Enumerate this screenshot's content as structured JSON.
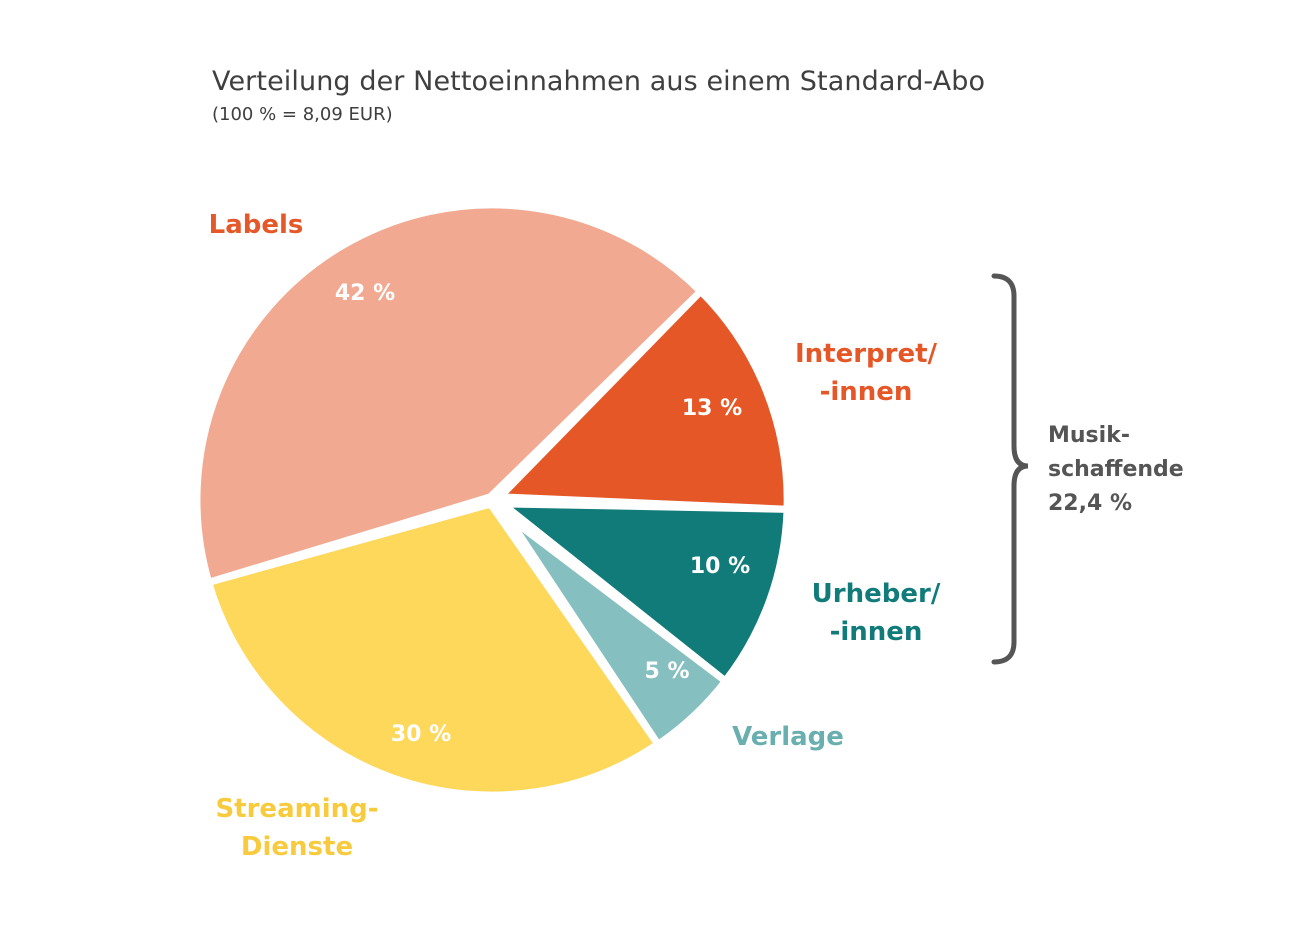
{
  "chart_data": {
    "type": "pie",
    "title": "Verteilung der Nettoeinnahmen aus einem Standard-Abo",
    "subtitle": "(100 % = 8,09 EUR)",
    "slices": [
      {
        "name": "labels",
        "category": [
          "Labels"
        ],
        "value": 42,
        "value_label": "42 %",
        "color": "#F2A991",
        "label_color": "#E5582A"
      },
      {
        "name": "interpreten",
        "category": [
          "Interpret/",
          "-innen"
        ],
        "value": 13,
        "value_label": "13 %",
        "color": "#E55727",
        "label_color": "#E55727"
      },
      {
        "name": "urheber",
        "category": [
          "Urheber/",
          "-innen"
        ],
        "value": 10,
        "value_label": "10 %",
        "color": "#117B7A",
        "label_color": "#117B7A"
      },
      {
        "name": "verlage",
        "category": [
          "Verlage"
        ],
        "value": 5,
        "value_label": "5 %",
        "color": "#85BFBF",
        "label_color": "#6AAFAF"
      },
      {
        "name": "streaming",
        "category": [
          "Streaming-",
          "Dienste"
        ],
        "value": 30,
        "value_label": "30 %",
        "color": "#FDD85B",
        "label_color": "#F7CB3D"
      }
    ],
    "group_annotation": {
      "lines": [
        "Musik-",
        "schaffende",
        "22,4 %"
      ],
      "color": "#555555"
    }
  }
}
